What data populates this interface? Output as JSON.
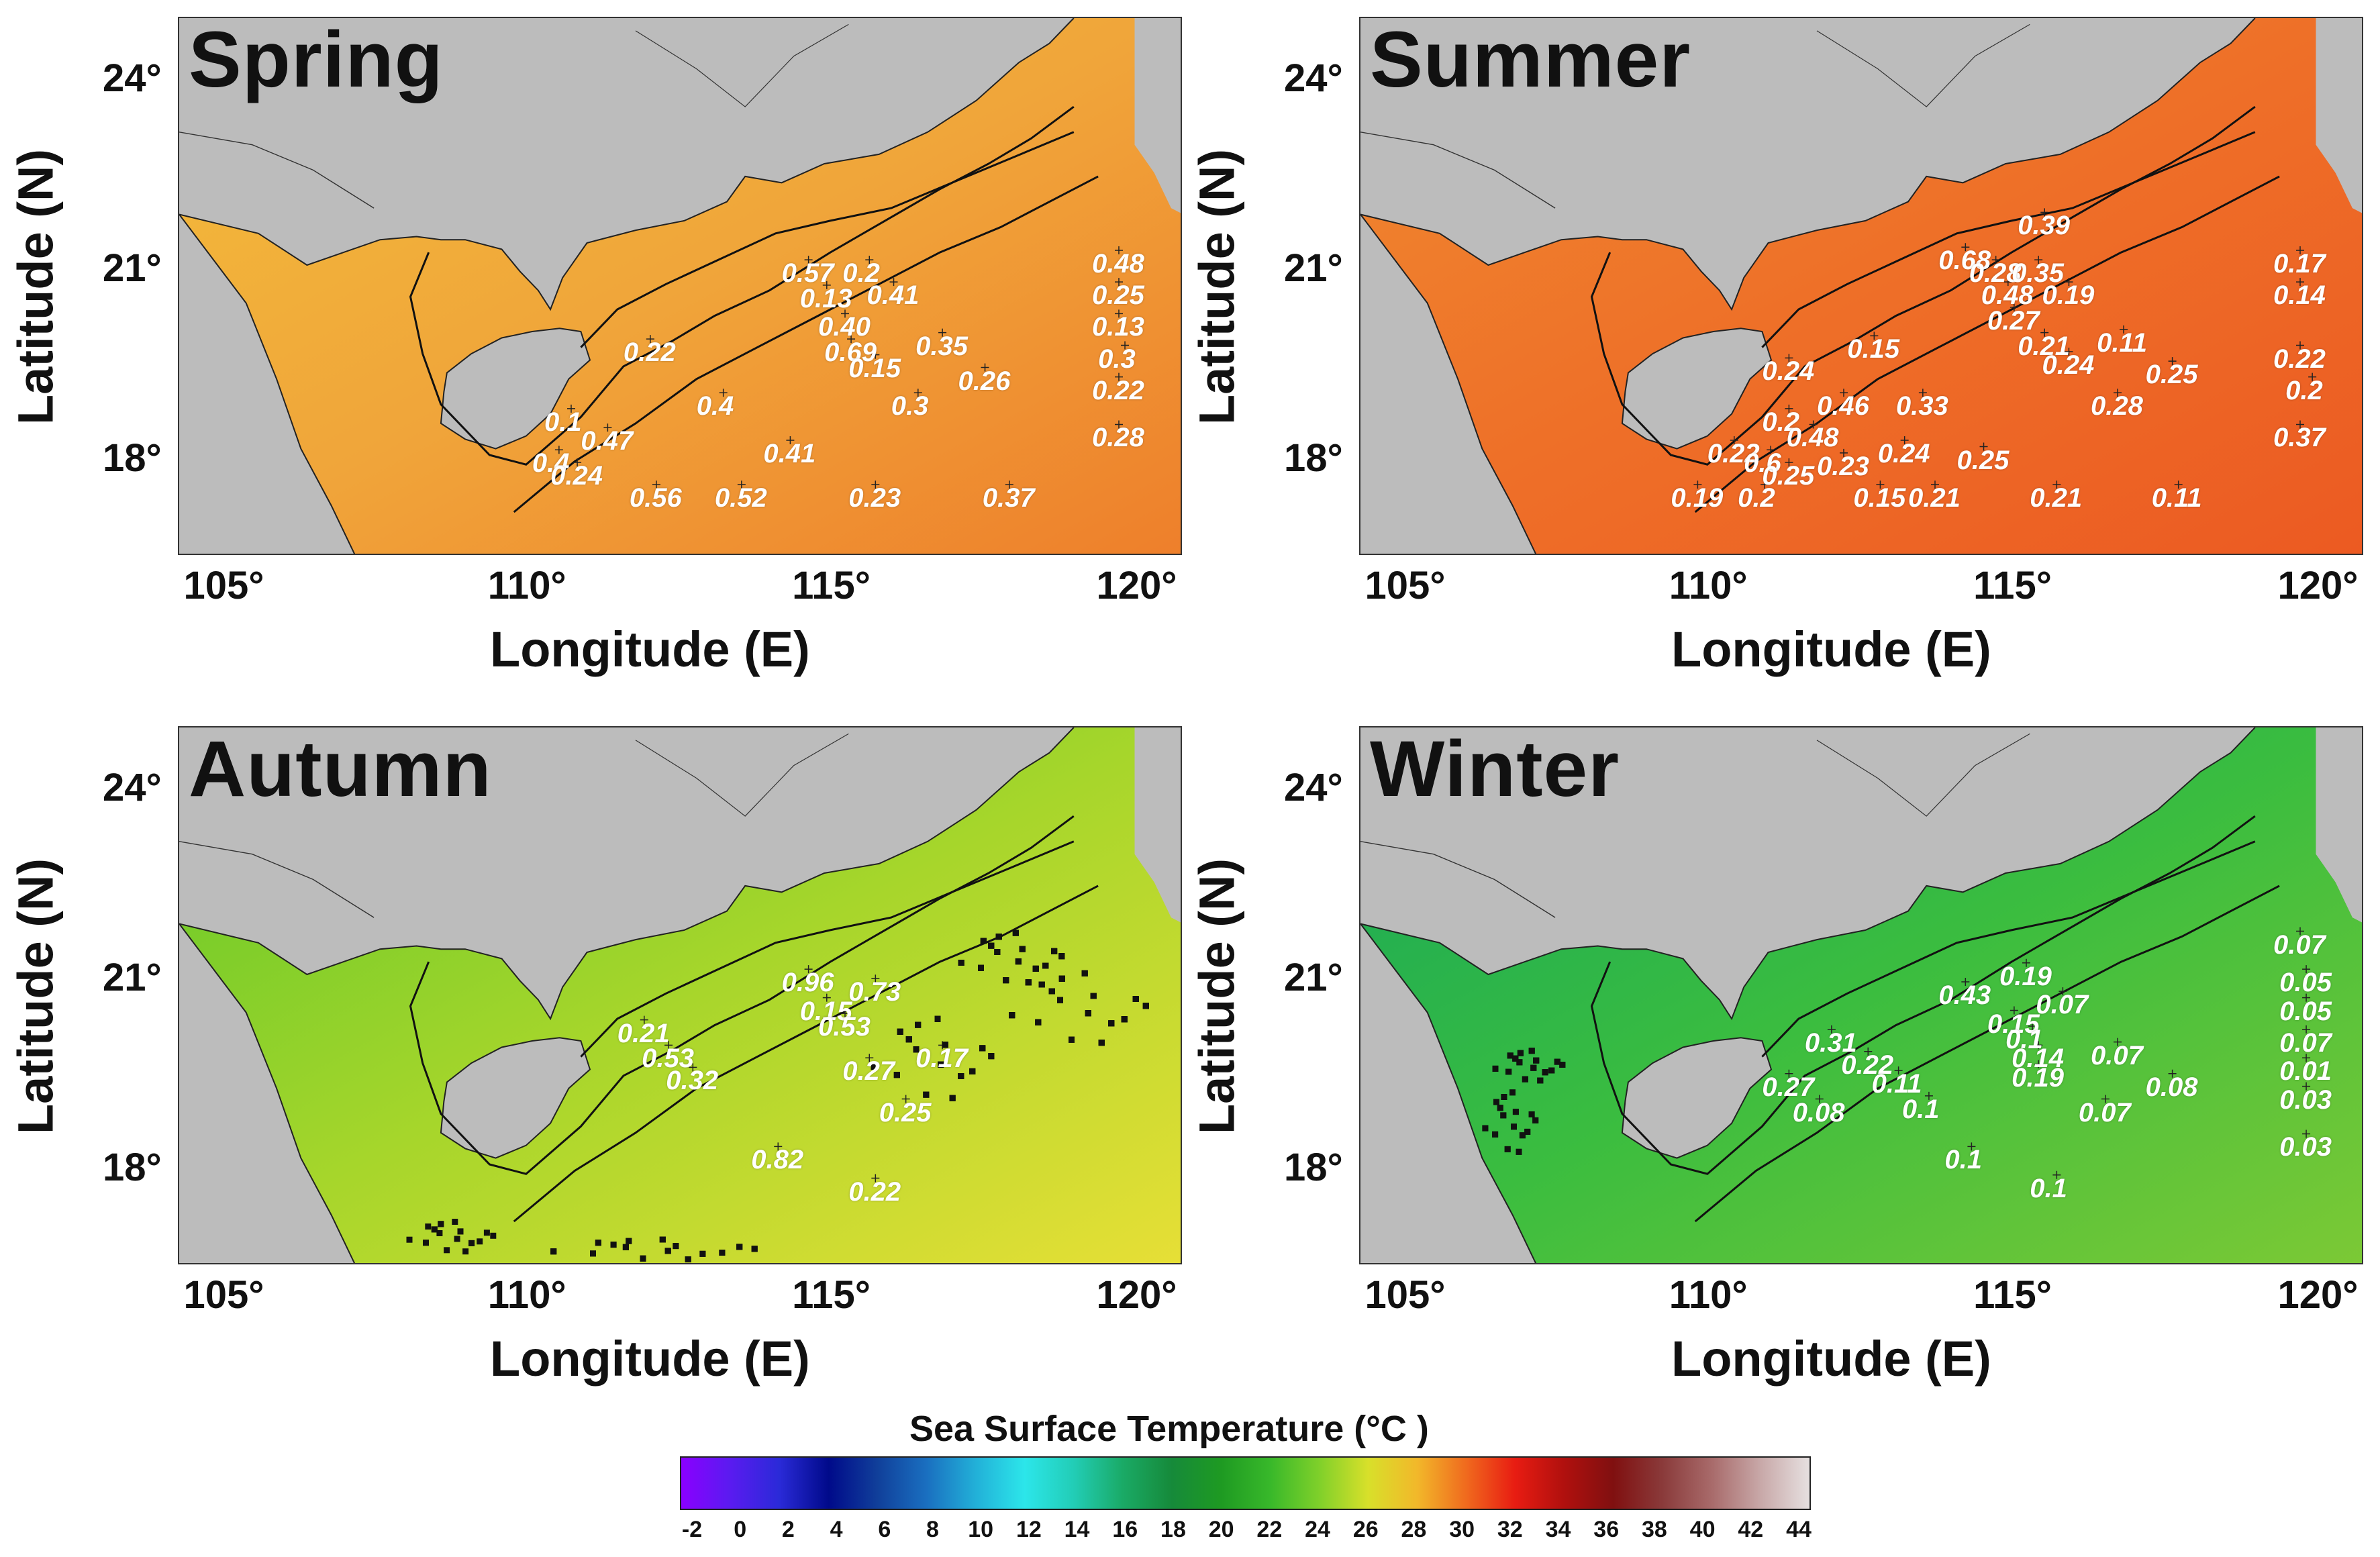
{
  "axis_labels": {
    "x": "Longitude (E)",
    "y": "Latitude (N)"
  },
  "x_ticks": [
    "105°",
    "110°",
    "115°",
    "120°"
  ],
  "y_ticks": [
    "24°",
    "21°",
    "18°"
  ],
  "colors": {
    "land": "#bcbcbc",
    "coast": "#222222",
    "isobath": "#111111"
  },
  "panels": [
    {
      "title": "Spring",
      "sea_color_stops": [
        "#f3bd3b",
        "#f0a53a",
        "#ee7f2b"
      ],
      "stats": [
        {
          "text": "0.57",
          "lon": 114.2,
          "lat": 20.95
        },
        {
          "text": "0.2",
          "lon": 115.2,
          "lat": 20.95
        },
        {
          "text": "0.13",
          "lon": 114.5,
          "lat": 20.55
        },
        {
          "text": "0.41",
          "lon": 115.6,
          "lat": 20.6
        },
        {
          "text": "0.40",
          "lon": 114.8,
          "lat": 20.1
        },
        {
          "text": "0.35",
          "lon": 116.4,
          "lat": 19.8
        },
        {
          "text": "0.69",
          "lon": 114.9,
          "lat": 19.7
        },
        {
          "text": "0.15",
          "lon": 115.3,
          "lat": 19.45
        },
        {
          "text": "0.26",
          "lon": 117.1,
          "lat": 19.25
        },
        {
          "text": "0.22",
          "lon": 111.6,
          "lat": 19.7
        },
        {
          "text": "0.4",
          "lon": 112.8,
          "lat": 18.85
        },
        {
          "text": "0.3",
          "lon": 116.0,
          "lat": 18.85
        },
        {
          "text": "0.1",
          "lon": 110.3,
          "lat": 18.6
        },
        {
          "text": "0.47",
          "lon": 110.9,
          "lat": 18.3
        },
        {
          "text": "0.4",
          "lon": 110.1,
          "lat": 17.95
        },
        {
          "text": "0.24",
          "lon": 110.4,
          "lat": 17.75
        },
        {
          "text": "0.41",
          "lon": 113.9,
          "lat": 18.1
        },
        {
          "text": "0.56",
          "lon": 111.7,
          "lat": 17.4
        },
        {
          "text": "0.52",
          "lon": 113.1,
          "lat": 17.4
        },
        {
          "text": "0.23",
          "lon": 115.3,
          "lat": 17.4
        },
        {
          "text": "0.37",
          "lon": 117.5,
          "lat": 17.4
        },
        {
          "text": "0.48",
          "lon": 119.3,
          "lat": 21.1
        },
        {
          "text": "0.25",
          "lon": 119.3,
          "lat": 20.6
        },
        {
          "text": "0.13",
          "lon": 119.3,
          "lat": 20.1
        },
        {
          "text": "0.3",
          "lon": 119.4,
          "lat": 19.6
        },
        {
          "text": "0.22",
          "lon": 119.3,
          "lat": 19.1
        },
        {
          "text": "0.28",
          "lon": 119.3,
          "lat": 18.35
        }
      ]
    },
    {
      "title": "Summer",
      "sea_color_stops": [
        "#f08a30",
        "#ee6f28",
        "#ec5a22"
      ],
      "stats": [
        {
          "text": "0.39",
          "lon": 115.1,
          "lat": 21.7
        },
        {
          "text": "0.68",
          "lon": 113.8,
          "lat": 21.15
        },
        {
          "text": "0.28",
          "lon": 114.3,
          "lat": 20.95
        },
        {
          "text": "0.35",
          "lon": 115.0,
          "lat": 20.95
        },
        {
          "text": "0.48",
          "lon": 114.5,
          "lat": 20.6
        },
        {
          "text": "0.19",
          "lon": 115.5,
          "lat": 20.6
        },
        {
          "text": "0.27",
          "lon": 114.6,
          "lat": 20.2
        },
        {
          "text": "0.21",
          "lon": 115.1,
          "lat": 19.8
        },
        {
          "text": "0.11",
          "lon": 116.4,
          "lat": 19.85
        },
        {
          "text": "0.24",
          "lon": 115.5,
          "lat": 19.5
        },
        {
          "text": "0.25",
          "lon": 117.2,
          "lat": 19.35
        },
        {
          "text": "0.15",
          "lon": 112.3,
          "lat": 19.75
        },
        {
          "text": "0.24",
          "lon": 110.9,
          "lat": 19.4
        },
        {
          "text": "0.33",
          "lon": 113.1,
          "lat": 18.85
        },
        {
          "text": "0.28",
          "lon": 116.3,
          "lat": 18.85
        },
        {
          "text": "0.2",
          "lon": 110.9,
          "lat": 18.6
        },
        {
          "text": "0.46",
          "lon": 111.8,
          "lat": 18.85
        },
        {
          "text": "0.48",
          "lon": 111.3,
          "lat": 18.35
        },
        {
          "text": "0.22",
          "lon": 110.0,
          "lat": 18.1
        },
        {
          "text": "0.6",
          "lon": 110.6,
          "lat": 17.95
        },
        {
          "text": "0.25",
          "lon": 110.9,
          "lat": 17.75
        },
        {
          "text": "0.23",
          "lon": 111.8,
          "lat": 17.9
        },
        {
          "text": "0.24",
          "lon": 112.8,
          "lat": 18.1
        },
        {
          "text": "0.25",
          "lon": 114.1,
          "lat": 18.0
        },
        {
          "text": "0.19",
          "lon": 109.4,
          "lat": 17.4
        },
        {
          "text": "0.2",
          "lon": 110.5,
          "lat": 17.4
        },
        {
          "text": "0.15",
          "lon": 112.4,
          "lat": 17.4
        },
        {
          "text": "0.21",
          "lon": 113.3,
          "lat": 17.4
        },
        {
          "text": "0.21",
          "lon": 115.3,
          "lat": 17.4
        },
        {
          "text": "0.11",
          "lon": 117.3,
          "lat": 17.4
        },
        {
          "text": "0.17",
          "lon": 119.3,
          "lat": 21.1
        },
        {
          "text": "0.14",
          "lon": 119.3,
          "lat": 20.6
        },
        {
          "text": "0.22",
          "lon": 119.3,
          "lat": 19.6
        },
        {
          "text": "0.2",
          "lon": 119.5,
          "lat": 19.1
        },
        {
          "text": "0.37",
          "lon": 119.3,
          "lat": 18.35
        }
      ]
    },
    {
      "title": "Autumn",
      "sea_color_stops": [
        "#5fc72a",
        "#a7d62b",
        "#e7df36"
      ],
      "stats": [
        {
          "text": "0.96",
          "lon": 114.2,
          "lat": 20.95
        },
        {
          "text": "0.73",
          "lon": 115.3,
          "lat": 20.8
        },
        {
          "text": "0.15",
          "lon": 114.5,
          "lat": 20.5
        },
        {
          "text": "0.53",
          "lon": 114.8,
          "lat": 20.25
        },
        {
          "text": "0.21",
          "lon": 111.5,
          "lat": 20.15
        },
        {
          "text": "0.17",
          "lon": 116.4,
          "lat": 19.75
        },
        {
          "text": "0.53",
          "lon": 111.9,
          "lat": 19.75
        },
        {
          "text": "0.32",
          "lon": 112.3,
          "lat": 19.4
        },
        {
          "text": "0.27",
          "lon": 115.2,
          "lat": 19.55
        },
        {
          "text": "0.25",
          "lon": 115.8,
          "lat": 18.9
        },
        {
          "text": "0.82",
          "lon": 113.7,
          "lat": 18.15
        },
        {
          "text": "0.22",
          "lon": 115.3,
          "lat": 17.65
        }
      ]
    },
    {
      "title": "Winter",
      "sea_color_stops": [
        "#17a85a",
        "#3bbd3f",
        "#7cc935"
      ],
      "stats": [
        {
          "text": "0.07",
          "lon": 119.3,
          "lat": 21.55
        },
        {
          "text": "0.19",
          "lon": 114.8,
          "lat": 21.05
        },
        {
          "text": "0.43",
          "lon": 113.8,
          "lat": 20.75
        },
        {
          "text": "0.07",
          "lon": 115.4,
          "lat": 20.6
        },
        {
          "text": "0.05",
          "lon": 119.4,
          "lat": 20.95
        },
        {
          "text": "0.05",
          "lon": 119.4,
          "lat": 20.5
        },
        {
          "text": "0.15",
          "lon": 114.6,
          "lat": 20.3
        },
        {
          "text": "0.1",
          "lon": 114.9,
          "lat": 20.05
        },
        {
          "text": "0.07",
          "lon": 119.4,
          "lat": 20.0
        },
        {
          "text": "0.31",
          "lon": 111.6,
          "lat": 20.0
        },
        {
          "text": "0.14",
          "lon": 115.0,
          "lat": 19.75
        },
        {
          "text": "0.07",
          "lon": 116.3,
          "lat": 19.8
        },
        {
          "text": "0.22",
          "lon": 112.2,
          "lat": 19.65
        },
        {
          "text": "0.01",
          "lon": 119.4,
          "lat": 19.55
        },
        {
          "text": "0.19",
          "lon": 115.0,
          "lat": 19.45
        },
        {
          "text": "0.08",
          "lon": 117.2,
          "lat": 19.3
        },
        {
          "text": "0.27",
          "lon": 110.9,
          "lat": 19.3
        },
        {
          "text": "0.11",
          "lon": 112.7,
          "lat": 19.35
        },
        {
          "text": "0.03",
          "lon": 119.4,
          "lat": 19.1
        },
        {
          "text": "0.08",
          "lon": 111.4,
          "lat": 18.9
        },
        {
          "text": "0.1",
          "lon": 113.2,
          "lat": 18.95
        },
        {
          "text": "0.07",
          "lon": 116.1,
          "lat": 18.9
        },
        {
          "text": "0.03",
          "lon": 119.4,
          "lat": 18.35
        },
        {
          "text": "0.1",
          "lon": 113.9,
          "lat": 18.15
        },
        {
          "text": "0.1",
          "lon": 115.3,
          "lat": 17.7
        }
      ]
    }
  ],
  "colorbar": {
    "title": "Sea Surface Temperature   (°C )",
    "ticks": [
      "-2",
      "0",
      "2",
      "4",
      "6",
      "8",
      "10",
      "12",
      "14",
      "16",
      "18",
      "20",
      "22",
      "24",
      "26",
      "28",
      "30",
      "32",
      "34",
      "36",
      "38",
      "40",
      "42",
      "44"
    ],
    "colors": [
      "#8a00ff",
      "#5a1bf0",
      "#2a2ad8",
      "#000a8a",
      "#103f9a",
      "#1a6fc0",
      "#22b0d8",
      "#2ce6ea",
      "#22cdb6",
      "#1aaa66",
      "#168a3a",
      "#1e9a22",
      "#38b82a",
      "#7fd02a",
      "#d8e02a",
      "#f2b82a",
      "#f06a1e",
      "#e81c12",
      "#b0100e",
      "#801010",
      "#8a3a3a",
      "#a86a6a",
      "#c8a8a8",
      "#e6e0e0"
    ]
  }
}
